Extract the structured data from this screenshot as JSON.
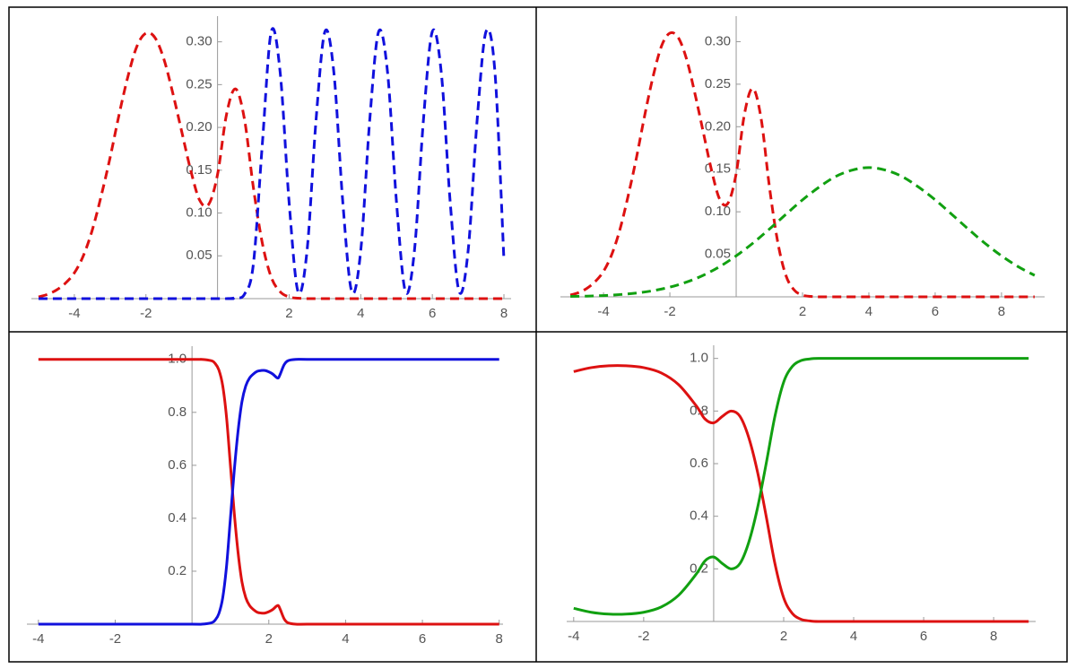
{
  "chart_data": [
    {
      "type": "line",
      "dashed": true,
      "xlim": [
        -5.2,
        8.2
      ],
      "xticks": [
        -4,
        -2,
        2,
        4,
        6,
        8
      ],
      "ylim": [
        0,
        0.33
      ],
      "yticks": [
        0.05,
        {
          "value": 0.1,
          "label": "0.10"
        },
        0.15,
        {
          "value": 0.2,
          "label": "0.20"
        },
        0.25,
        {
          "value": 0.3,
          "label": "0.30"
        }
      ],
      "series": [
        {
          "color": "#dd1111",
          "x": [
            -5,
            -4.75,
            -4.5,
            -4.25,
            -4,
            -3.75,
            -3.5,
            -3.25,
            -3,
            -2.75,
            -2.5,
            -2.25,
            -2,
            -1.75,
            -1.5,
            -1.25,
            -1,
            -0.75,
            -0.5,
            -0.25,
            0,
            0.25,
            0.5,
            0.75,
            1,
            1.25,
            1.5,
            1.75,
            2,
            2.25,
            2.5,
            3,
            4,
            5,
            6,
            7,
            8
          ],
          "values": [
            0.002,
            0.005,
            0.01,
            0.018,
            0.03,
            0.05,
            0.08,
            0.12,
            0.165,
            0.215,
            0.26,
            0.295,
            0.31,
            0.305,
            0.28,
            0.24,
            0.195,
            0.15,
            0.115,
            0.11,
            0.145,
            0.215,
            0.245,
            0.21,
            0.13,
            0.065,
            0.025,
            0.008,
            0.002,
            0.0005,
            0,
            0,
            0,
            0,
            0,
            0,
            0
          ]
        },
        {
          "color": "#1111dd",
          "x": [
            -5,
            0,
            0.25,
            0.5,
            0.75,
            1,
            1.25,
            1.5,
            1.75,
            2,
            2.25,
            2.5,
            2.75,
            3,
            3.25,
            3.5,
            3.75,
            4,
            4.25,
            4.5,
            4.75,
            5,
            5.25,
            5.5,
            5.75,
            6,
            6.25,
            6.5,
            6.75,
            7,
            7.25,
            7.5,
            7.75,
            8
          ],
          "values": [
            0,
            0,
            0,
            0.001,
            0.005,
            0.04,
            0.18,
            0.312,
            0.264,
            0.112,
            0.008,
            0.056,
            0.208,
            0.312,
            0.264,
            0.112,
            0.008,
            0.056,
            0.208,
            0.312,
            0.264,
            0.112,
            0.008,
            0.056,
            0.208,
            0.312,
            0.264,
            0.112,
            0.008,
            0.056,
            0.208,
            0.312,
            0.264,
            0.045
          ]
        }
      ]
    },
    {
      "type": "line",
      "dashed": true,
      "xlim": [
        -5.3,
        9.3
      ],
      "xticks": [
        -4,
        -2,
        2,
        4,
        6,
        8
      ],
      "ylim": [
        0,
        0.33
      ],
      "yticks": [
        0.05,
        {
          "value": 0.1,
          "label": "0.10"
        },
        0.15,
        {
          "value": 0.2,
          "label": "0.20"
        },
        0.25,
        {
          "value": 0.3,
          "label": "0.30"
        }
      ],
      "series": [
        {
          "color": "#dd1111",
          "x": [
            -5,
            -4.75,
            -4.5,
            -4.25,
            -4,
            -3.75,
            -3.5,
            -3.25,
            -3,
            -2.75,
            -2.5,
            -2.25,
            -2,
            -1.75,
            -1.5,
            -1.25,
            -1,
            -0.75,
            -0.5,
            -0.25,
            0,
            0.25,
            0.5,
            0.75,
            1,
            1.25,
            1.5,
            1.75,
            2,
            2.25,
            2.5,
            3,
            4,
            5,
            6,
            7,
            8,
            9
          ],
          "values": [
            0.002,
            0.005,
            0.01,
            0.018,
            0.03,
            0.05,
            0.08,
            0.12,
            0.165,
            0.215,
            0.26,
            0.295,
            0.31,
            0.305,
            0.28,
            0.24,
            0.195,
            0.15,
            0.115,
            0.11,
            0.145,
            0.215,
            0.245,
            0.21,
            0.13,
            0.065,
            0.025,
            0.008,
            0.002,
            0.0005,
            0,
            0,
            0,
            0,
            0,
            0,
            0,
            0
          ]
        },
        {
          "color": "#11a011",
          "x": [
            -5,
            -4.5,
            -4,
            -3.5,
            -3,
            -2.5,
            -2,
            -1.5,
            -1,
            -0.5,
            0,
            0.5,
            1,
            1.5,
            2,
            2.5,
            3,
            3.5,
            4,
            4.5,
            5,
            5.5,
            6,
            6.5,
            7,
            7.5,
            8,
            8.5,
            9
          ],
          "values": [
            0.0005,
            0.0008,
            0.0015,
            0.0027,
            0.0045,
            0.0073,
            0.0114,
            0.0173,
            0.0252,
            0.0355,
            0.0482,
            0.063,
            0.0796,
            0.097,
            0.114,
            0.129,
            0.1415,
            0.149,
            0.152,
            0.149,
            0.1415,
            0.129,
            0.114,
            0.097,
            0.0796,
            0.063,
            0.0482,
            0.0355,
            0.0252
          ]
        }
      ]
    },
    {
      "type": "line",
      "dashed": false,
      "xlim": [
        -4.3,
        8.1
      ],
      "xticks": [
        -4,
        -2,
        2,
        4,
        6,
        8
      ],
      "ylim": [
        0,
        1.05
      ],
      "yticks": [
        0.2,
        0.4,
        0.6,
        0.8,
        {
          "value": 1,
          "label": "1.0"
        }
      ],
      "series": [
        {
          "color": "#dd1111",
          "x": [
            -4,
            -2,
            0,
            0.25,
            0.5,
            0.6,
            0.7,
            0.8,
            0.9,
            1,
            1.1,
            1.2,
            1.3,
            1.4,
            1.5,
            1.6,
            1.7,
            1.8,
            1.9,
            2,
            2.1,
            2.2,
            2.25,
            2.3,
            2.4,
            2.5,
            2.7,
            3,
            4,
            5,
            6,
            7,
            8
          ],
          "values": [
            1,
            1,
            1,
            1,
            0.995,
            0.985,
            0.96,
            0.9,
            0.78,
            0.6,
            0.42,
            0.27,
            0.16,
            0.1,
            0.07,
            0.055,
            0.045,
            0.042,
            0.042,
            0.047,
            0.055,
            0.068,
            0.07,
            0.055,
            0.02,
            0.005,
            0,
            0,
            0,
            0,
            0,
            0,
            0
          ]
        },
        {
          "color": "#1111dd",
          "x": [
            -4,
            -2,
            0,
            0.25,
            0.5,
            0.6,
            0.7,
            0.8,
            0.9,
            1,
            1.1,
            1.2,
            1.3,
            1.4,
            1.5,
            1.6,
            1.7,
            1.8,
            1.9,
            2,
            2.1,
            2.2,
            2.25,
            2.3,
            2.4,
            2.5,
            2.7,
            3,
            4,
            5,
            6,
            7,
            8
          ],
          "values": [
            0,
            0,
            0,
            0,
            0.005,
            0.015,
            0.04,
            0.1,
            0.22,
            0.4,
            0.58,
            0.73,
            0.84,
            0.9,
            0.93,
            0.945,
            0.955,
            0.958,
            0.958,
            0.953,
            0.945,
            0.932,
            0.93,
            0.945,
            0.98,
            0.995,
            1,
            1,
            1,
            1,
            1,
            1,
            1
          ]
        }
      ]
    },
    {
      "type": "line",
      "dashed": false,
      "xlim": [
        -4.2,
        9.2
      ],
      "xticks": [
        -4,
        -2,
        2,
        4,
        6,
        8
      ],
      "ylim": [
        0,
        1.05
      ],
      "yticks": [
        0.2,
        0.4,
        0.6,
        0.8,
        {
          "value": 1,
          "label": "1.0"
        }
      ],
      "series": [
        {
          "color": "#dd1111",
          "x": [
            -4,
            -3.5,
            -3,
            -2.5,
            -2,
            -1.5,
            -1,
            -0.5,
            -0.25,
            0,
            0.25,
            0.5,
            0.75,
            1,
            1.25,
            1.5,
            1.75,
            2,
            2.25,
            2.5,
            2.75,
            3,
            4,
            5,
            6,
            7,
            8,
            9
          ],
          "values": [
            0.95,
            0.965,
            0.972,
            0.972,
            0.965,
            0.945,
            0.9,
            0.82,
            0.77,
            0.755,
            0.78,
            0.8,
            0.78,
            0.7,
            0.57,
            0.4,
            0.22,
            0.09,
            0.03,
            0.008,
            0.002,
            0,
            0,
            0,
            0,
            0,
            0,
            0
          ]
        },
        {
          "color": "#11a011",
          "x": [
            -4,
            -3.5,
            -3,
            -2.5,
            -2,
            -1.5,
            -1,
            -0.5,
            -0.25,
            0,
            0.25,
            0.5,
            0.75,
            1,
            1.25,
            1.5,
            1.75,
            2,
            2.25,
            2.5,
            2.75,
            3,
            4,
            5,
            6,
            7,
            8,
            9
          ],
          "values": [
            0.05,
            0.035,
            0.028,
            0.028,
            0.035,
            0.055,
            0.1,
            0.18,
            0.23,
            0.245,
            0.22,
            0.2,
            0.22,
            0.3,
            0.43,
            0.6,
            0.78,
            0.91,
            0.97,
            0.992,
            0.998,
            1,
            1,
            1,
            1,
            1,
            1,
            1
          ]
        }
      ]
    }
  ]
}
